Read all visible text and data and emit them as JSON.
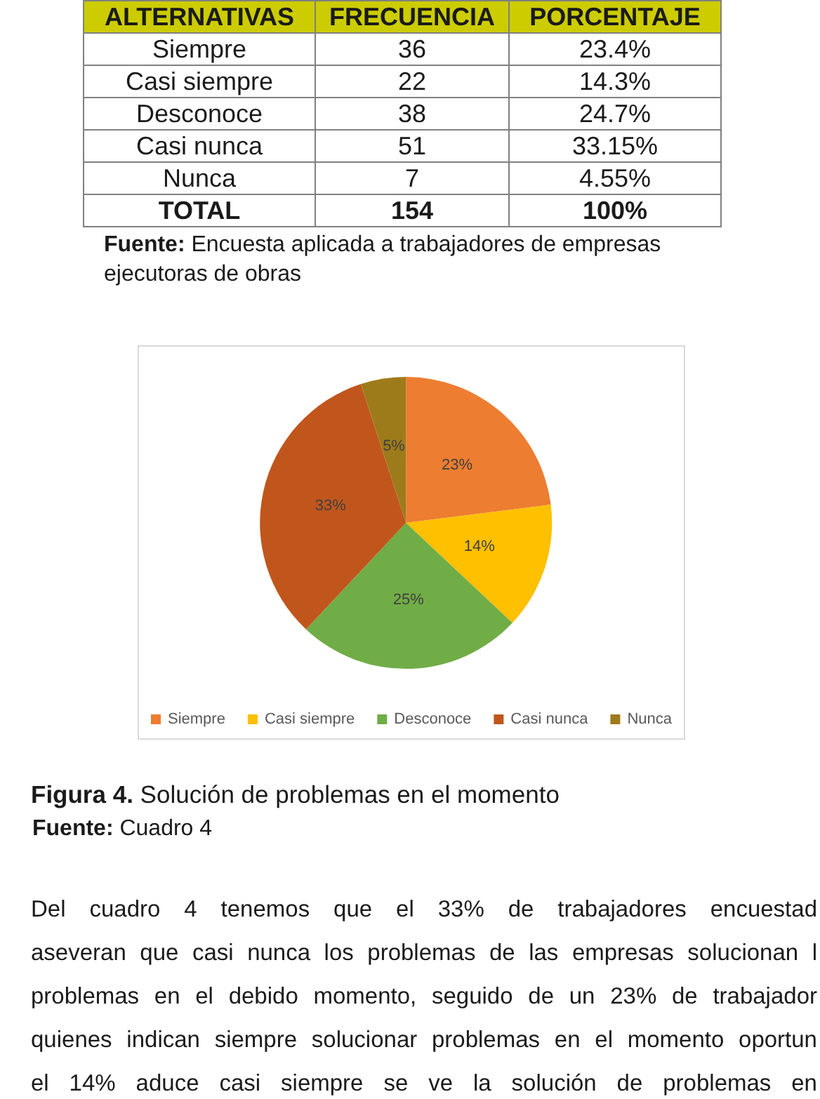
{
  "chart_data": [
    {
      "type": "other",
      "annotations": [
        "ALTERNATIVAS",
        "FRECUENCIA",
        "PORCENTAJE",
        "Siempre",
        "36",
        "23.4%",
        "Casi siempre",
        "22",
        "14.3%",
        "Desconoce",
        "38",
        "24.7%",
        "Casi nunca",
        "51",
        "33.15%",
        "Nunca",
        "7",
        "4.55%",
        "TOTAL",
        "154",
        "100%",
        "Fuente: Encuesta aplicada a trabajadores de empresas ejecutoras de obras"
      ]
    },
    {
      "type": "pie",
      "title": "Figura 4. Solución de problemas en el momento",
      "categories": [
        "Siempre",
        "Casi siempre",
        "Desconoce",
        "Casi nunca",
        "Nunca"
      ],
      "values": [
        23,
        14,
        25,
        33,
        5
      ],
      "value_labels": [
        "23%",
        "14%",
        "25%",
        "33%",
        "5%"
      ],
      "colors": [
        "#ed7d31",
        "#ffc000",
        "#70ad47",
        "#c0561c",
        "#9e7b1a"
      ],
      "legend": "bottom",
      "annotations": [
        "Fuente: Cuadro 4",
        "Del cuadro 4 tenemos que el 33% de trabajadores encuestad",
        "aseveran que casi nunca los problemas de las empresas solucionan l",
        "problemas en el debido momento, seguido de un 23% de trabajador",
        "quienes indican siempre solucionar problemas en el momento oportun",
        "el 14% aduce casi siempre se ve la solución de problemas en"
      ]
    }
  ]
}
